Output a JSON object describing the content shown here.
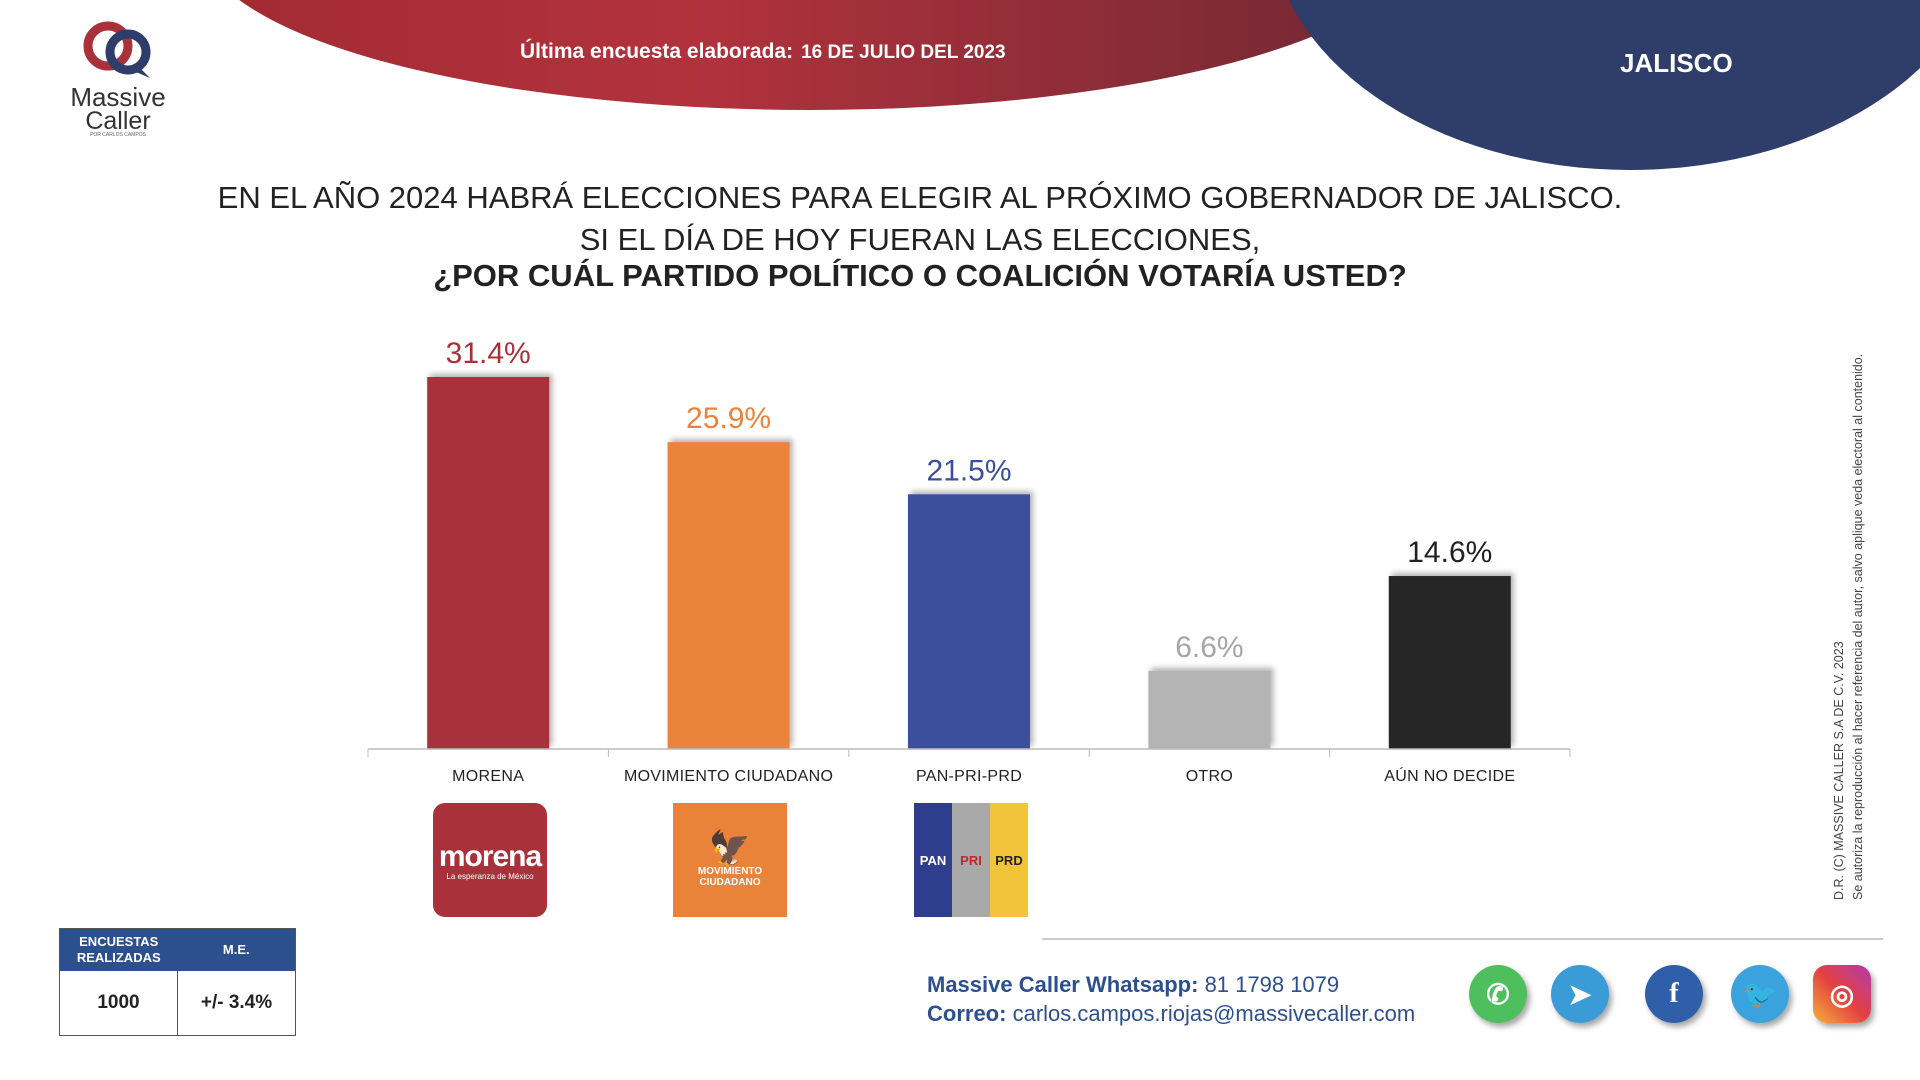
{
  "header": {
    "label": "Última encuesta elaborada:",
    "date": "16 DE JULIO DEL 2023",
    "region": "JALISCO"
  },
  "logo": {
    "line1": "Massive",
    "line2": "Caller",
    "line3": "POR CARLOS CAMPOS"
  },
  "question": {
    "line1": "EN EL AÑO 2024 HABRÁ ELECCIONES PARA ELEGIR AL PRÓXIMO GOBERNADOR DE JALISCO.",
    "line2": "SI EL DÍA DE HOY FUERAN LAS ELECCIONES,",
    "line3": "¿POR CUÁL PARTIDO POLÍTICO O COALICIÓN VOTARÍA USTED?"
  },
  "side_note": {
    "line1": "D.R. (C) MASSIVE CALLER S.A DE C.V. 2023",
    "line2": "Se autoriza la reproducción al hacer referencia del autor, salvo aplique veda electoral al contenido."
  },
  "chart_data": {
    "type": "bar",
    "categories": [
      "MORENA",
      "MOVIMIENTO CIUDADANO",
      "PAN-PRI-PRD",
      "OTRO",
      "AÚN NO DECIDE"
    ],
    "values": [
      31.4,
      25.9,
      21.5,
      6.6,
      14.6
    ],
    "value_labels": [
      "31.4%",
      "25.9%",
      "21.5%",
      "6.6%",
      "14.6%"
    ],
    "colors": [
      "#a8313a",
      "#ea833a",
      "#3a4f9d",
      "#b4b4b4",
      "#262626"
    ],
    "label_colors": [
      "#a8313a",
      "#ea833a",
      "#3a4f9d",
      "#a6a6a6",
      "#222222"
    ],
    "title": "",
    "xlabel": "",
    "ylabel": "",
    "ylim": [
      0,
      31.4
    ],
    "grid": false
  },
  "party_logos": {
    "morena_big": "morena",
    "morena_small": "La esperanza de México",
    "mc_text_1": "MOVIMIENTO",
    "mc_text_2": "CIUDADANO",
    "pan": "PAN",
    "pri": "PRI",
    "prd": "PRD"
  },
  "stats": {
    "col1_header": "ENCUESTAS REALIZADAS",
    "col2_header": "M.E.",
    "col1_value": "1000",
    "col2_value": "+/- 3.4%"
  },
  "contact": {
    "whatsapp_label": "Massive Caller Whatsapp:",
    "whatsapp_value": "81 1798 1079",
    "email_label": "Correo:",
    "email_value": "carlos.campos.riojas@massivecaller.com"
  },
  "social_icons": [
    "whatsapp-icon",
    "telegram-icon",
    "facebook-icon",
    "twitter-icon",
    "instagram-icon"
  ]
}
